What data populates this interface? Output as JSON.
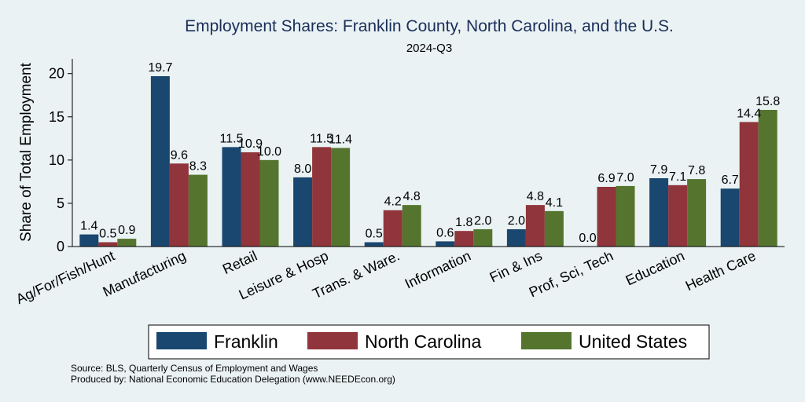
{
  "chart_data": {
    "type": "bar",
    "title": "Employment Shares: Franklin County, North Carolina, and the U.S.",
    "subtitle": "2024-Q3",
    "xlabel": "",
    "ylabel": "Share of Total Employment",
    "ylim": [
      0,
      21.7
    ],
    "yticks": [
      0,
      5,
      10,
      15,
      20
    ],
    "grid": false,
    "legend_position": "bottom",
    "categories": [
      "Ag/For/Fish/Hunt",
      "Manufacturing",
      "Retail",
      "Leisure & Hosp",
      "Trans. & Ware.",
      "Information",
      "Fin & Ins",
      "Prof, Sci, Tech",
      "Education",
      "Health Care"
    ],
    "series": [
      {
        "name": "Franklin",
        "color": "#1a476f",
        "values": [
          1.4,
          19.7,
          11.5,
          8.0,
          0.5,
          0.6,
          2.0,
          0.0,
          7.9,
          6.7
        ],
        "labels": [
          "1.4",
          "19.7",
          "11.5",
          "8.0",
          "0.5",
          "0.6",
          "2.0",
          "0.0",
          "7.9",
          "6.7"
        ]
      },
      {
        "name": "North Carolina",
        "color": "#90353b",
        "values": [
          0.5,
          9.6,
          10.9,
          11.5,
          4.2,
          1.8,
          4.8,
          6.9,
          7.1,
          14.4
        ],
        "labels": [
          "0.5",
          "9.6",
          "10.9",
          "11.5",
          "4.2",
          "1.8",
          "4.8",
          "6.9",
          "7.1",
          "14.4"
        ]
      },
      {
        "name": "United States",
        "color": "#55752f",
        "values": [
          0.9,
          8.3,
          10.0,
          11.4,
          4.8,
          2.0,
          4.1,
          7.0,
          7.8,
          15.8
        ],
        "labels": [
          "0.9",
          "8.3",
          "10.0",
          "11.4",
          "4.8",
          "2.0",
          "4.1",
          "7.0",
          "7.8",
          "15.8"
        ]
      }
    ]
  },
  "notes": {
    "source": "Source: BLS, Quarterly Census of Employment and Wages",
    "produced": "Produced by: National Economic Education Delegation (www.NEEDEcon.org)"
  }
}
